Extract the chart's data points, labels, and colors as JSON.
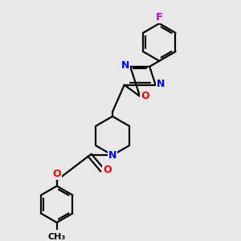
{
  "background_color": "#e8e8e8",
  "bond_color": "#000000",
  "nitrogen_color": "#0000ff",
  "oxygen_color": "#ff0000",
  "fluorine_color": "#cc00cc",
  "carbon_color": "#000000",
  "line_width": 1.6,
  "figsize": [
    3.0,
    3.0
  ],
  "dpi": 100,
  "xlim": [
    0,
    10
  ],
  "ylim": [
    0,
    10
  ]
}
